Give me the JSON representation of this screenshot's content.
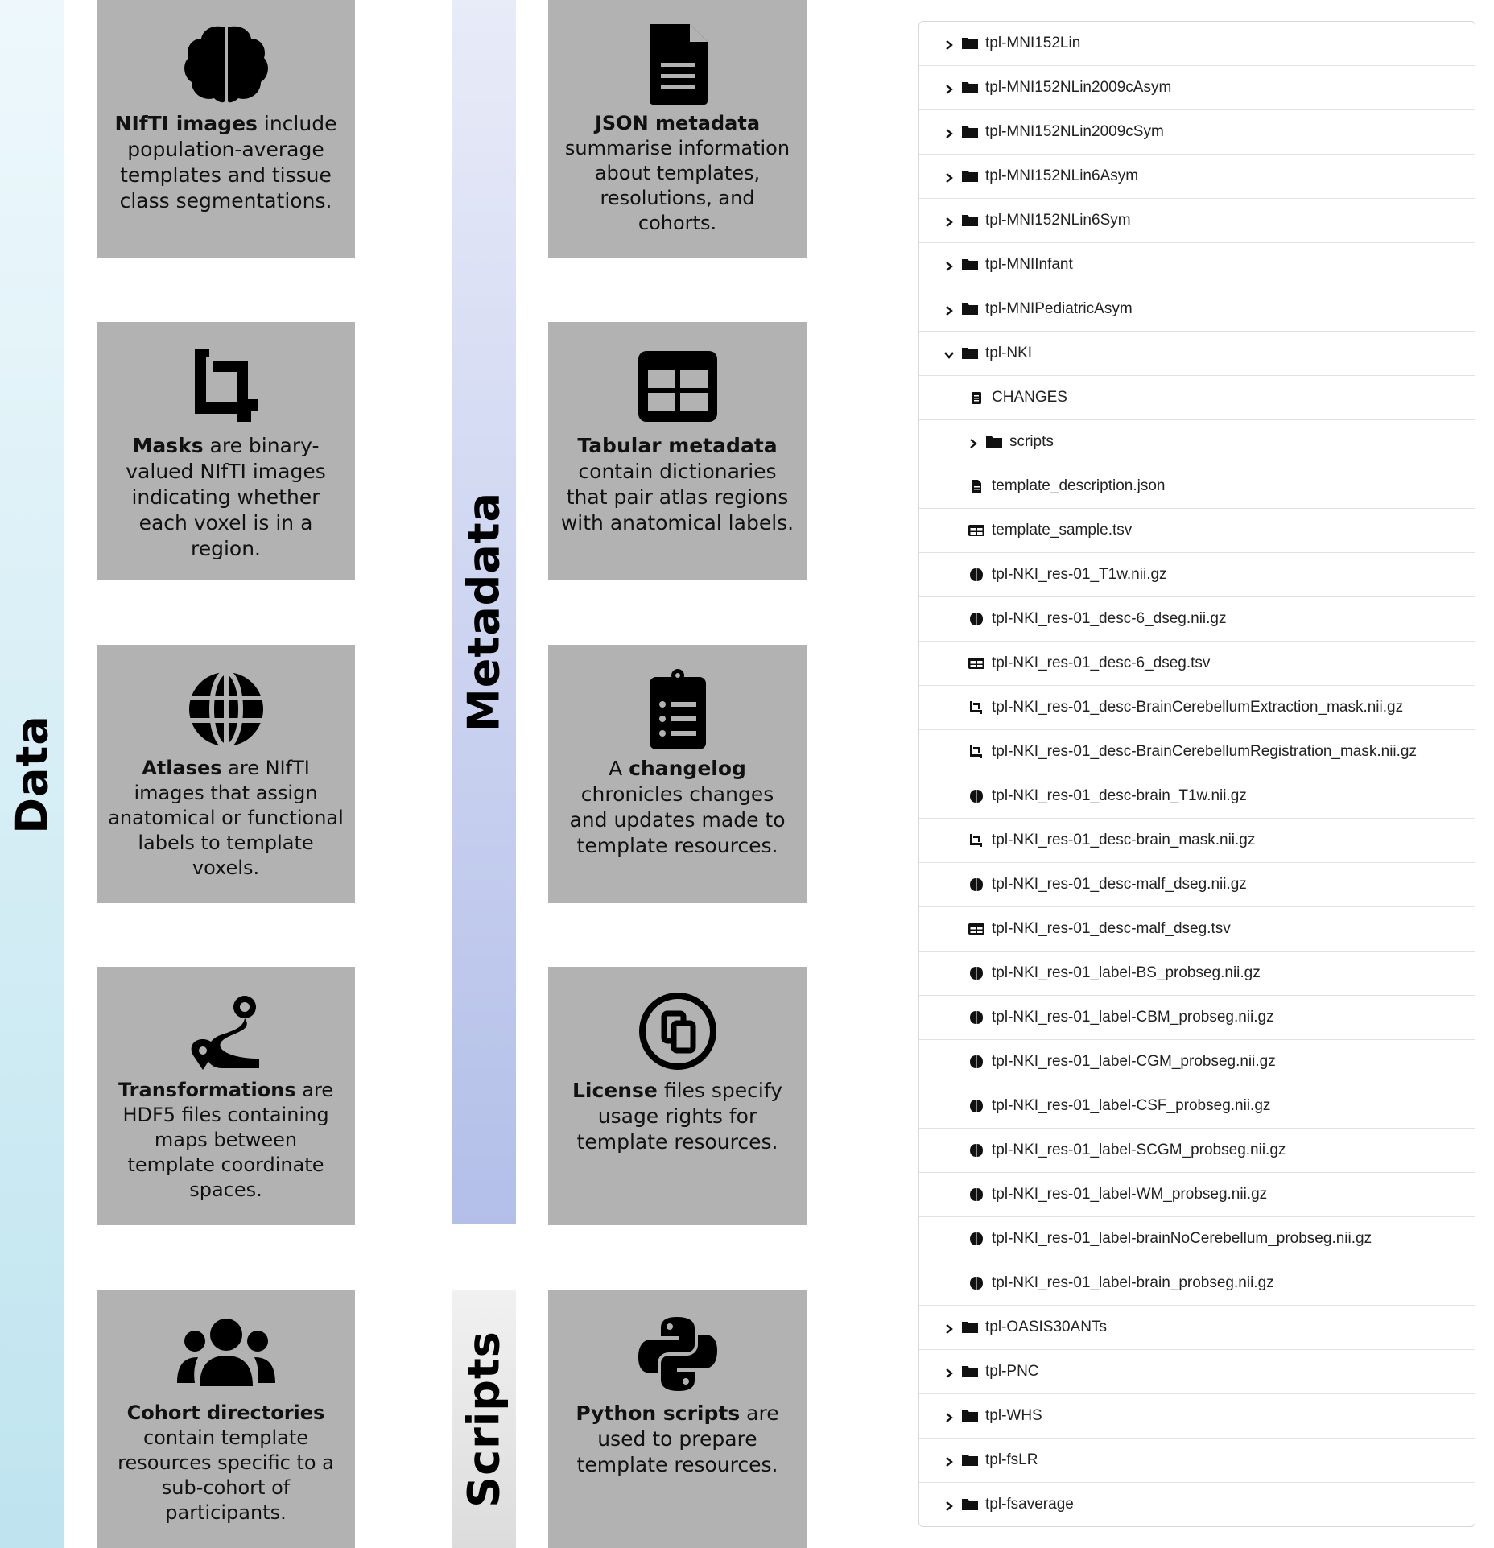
{
  "bands": {
    "data_label": "Data",
    "metadata_label": "Metadata",
    "scripts_label": "Scripts"
  },
  "cards": {
    "nifti": {
      "icon": "brain-icon",
      "bold": "NIfTI images",
      "rest": " include population-average templates and tissue class segmentations."
    },
    "masks": {
      "icon": "crop-icon",
      "bold": "Masks",
      "rest": " are binary-valued NIfTI images indicating whether each voxel is in a region."
    },
    "atlases": {
      "icon": "globe-icon",
      "bold": "Atlases",
      "rest": " are NIfTI images that assign anatomical or functional labels to template voxels."
    },
    "transforms": {
      "icon": "route-icon",
      "bold": "Transformations",
      "rest": " are HDF5 files containing maps between template coordinate spaces."
    },
    "cohorts": {
      "icon": "users-icon",
      "bold": "Cohort directories",
      "rest": " contain template resources specific to a sub-cohort of participants."
    },
    "json": {
      "icon": "file-lines-icon",
      "bold": "JSON metadata",
      "rest": " summarise information about templates, resolutions, and cohorts."
    },
    "tabular": {
      "icon": "table-icon",
      "bold": "Tabular metadata",
      "rest": " contain dictionaries that pair atlas regions with anatomical labels."
    },
    "changelog": {
      "icon": "clipboard-list-icon",
      "pre": "A ",
      "bold": "changelog",
      "rest": " chronicles changes and updates made to template resources."
    },
    "license": {
      "icon": "copyright-icon",
      "bold": "License",
      "rest": " files specify usage rights for template resources."
    },
    "python": {
      "icon": "python-icon",
      "bold": "Python scripts",
      "rest": " are used to prepare template resources."
    }
  },
  "tree": [
    {
      "name": "tpl-MNI152Lin",
      "type": "folder",
      "state": "collapsed",
      "level": 0
    },
    {
      "name": "tpl-MNI152NLin2009cAsym",
      "type": "folder",
      "state": "collapsed",
      "level": 0
    },
    {
      "name": "tpl-MNI152NLin2009cSym",
      "type": "folder",
      "state": "collapsed",
      "level": 0
    },
    {
      "name": "tpl-MNI152NLin6Asym",
      "type": "folder",
      "state": "collapsed",
      "level": 0
    },
    {
      "name": "tpl-MNI152NLin6Sym",
      "type": "folder",
      "state": "collapsed",
      "level": 0
    },
    {
      "name": "tpl-MNIInfant",
      "type": "folder",
      "state": "collapsed",
      "level": 0
    },
    {
      "name": "tpl-MNIPediatricAsym",
      "type": "folder",
      "state": "collapsed",
      "level": 0
    },
    {
      "name": "tpl-NKI",
      "type": "folder",
      "state": "expanded",
      "level": 0
    },
    {
      "name": "CHANGES",
      "type": "clipboard",
      "level": 1
    },
    {
      "name": "scripts",
      "type": "folder",
      "state": "collapsed",
      "level": 1
    },
    {
      "name": "template_description.json",
      "type": "file",
      "level": 1
    },
    {
      "name": "template_sample.tsv",
      "type": "table",
      "level": 1
    },
    {
      "name": "tpl-NKI_res-01_T1w.nii.gz",
      "type": "brain",
      "level": 1
    },
    {
      "name": "tpl-NKI_res-01_desc-6_dseg.nii.gz",
      "type": "brain",
      "level": 1
    },
    {
      "name": "tpl-NKI_res-01_desc-6_dseg.tsv",
      "type": "table",
      "level": 1
    },
    {
      "name": "tpl-NKI_res-01_desc-BrainCerebellumExtraction_mask.nii.gz",
      "type": "crop",
      "level": 1
    },
    {
      "name": "tpl-NKI_res-01_desc-BrainCerebellumRegistration_mask.nii.gz",
      "type": "crop",
      "level": 1
    },
    {
      "name": "tpl-NKI_res-01_desc-brain_T1w.nii.gz",
      "type": "brain",
      "level": 1
    },
    {
      "name": "tpl-NKI_res-01_desc-brain_mask.nii.gz",
      "type": "crop",
      "level": 1
    },
    {
      "name": "tpl-NKI_res-01_desc-malf_dseg.nii.gz",
      "type": "brain",
      "level": 1
    },
    {
      "name": "tpl-NKI_res-01_desc-malf_dseg.tsv",
      "type": "table",
      "level": 1
    },
    {
      "name": "tpl-NKI_res-01_label-BS_probseg.nii.gz",
      "type": "brain",
      "level": 1
    },
    {
      "name": "tpl-NKI_res-01_label-CBM_probseg.nii.gz",
      "type": "brain",
      "level": 1
    },
    {
      "name": "tpl-NKI_res-01_label-CGM_probseg.nii.gz",
      "type": "brain",
      "level": 1
    },
    {
      "name": "tpl-NKI_res-01_label-CSF_probseg.nii.gz",
      "type": "brain",
      "level": 1
    },
    {
      "name": "tpl-NKI_res-01_label-SCGM_probseg.nii.gz",
      "type": "brain",
      "level": 1
    },
    {
      "name": "tpl-NKI_res-01_label-WM_probseg.nii.gz",
      "type": "brain",
      "level": 1
    },
    {
      "name": "tpl-NKI_res-01_label-brainNoCerebellum_probseg.nii.gz",
      "type": "brain",
      "level": 1
    },
    {
      "name": "tpl-NKI_res-01_label-brain_probseg.nii.gz",
      "type": "brain",
      "level": 1
    },
    {
      "name": "tpl-OASIS30ANTs",
      "type": "folder",
      "state": "collapsed",
      "level": 0
    },
    {
      "name": "tpl-PNC",
      "type": "folder",
      "state": "collapsed",
      "level": 0
    },
    {
      "name": "tpl-WHS",
      "type": "folder",
      "state": "collapsed",
      "level": 0
    },
    {
      "name": "tpl-fsLR",
      "type": "folder",
      "state": "collapsed",
      "level": 0
    },
    {
      "name": "tpl-fsaverage",
      "type": "folder",
      "state": "collapsed",
      "level": 0
    }
  ],
  "colors": {
    "card_bg": "#b2b2b2",
    "data_band": "#bfe4ef",
    "metadata_band": "#b3bfe9",
    "scripts_band": "#dcdcdc"
  }
}
